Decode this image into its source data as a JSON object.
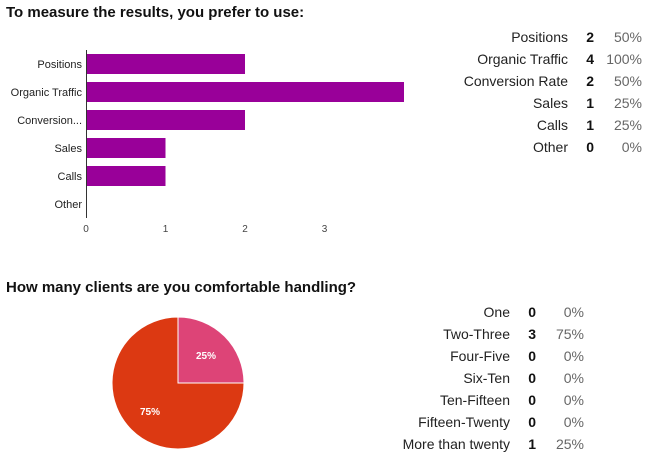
{
  "questions": [
    {
      "title": "To measure the results, you prefer to use:",
      "rows": [
        {
          "label": "Positions",
          "count": "2",
          "percent": "50%"
        },
        {
          "label": "Organic Traffic",
          "count": "4",
          "percent": "100%"
        },
        {
          "label": "Conversion Rate",
          "count": "2",
          "percent": "50%"
        },
        {
          "label": "Sales",
          "count": "1",
          "percent": "25%"
        },
        {
          "label": "Calls",
          "count": "1",
          "percent": "25%"
        },
        {
          "label": "Other",
          "count": "0",
          "percent": "0%"
        }
      ]
    },
    {
      "title": "How many clients are you comfortable handling?",
      "rows": [
        {
          "label": "One",
          "count": "0",
          "percent": "0%"
        },
        {
          "label": "Two-Three",
          "count": "3",
          "percent": "75%"
        },
        {
          "label": "Four-Five",
          "count": "0",
          "percent": "0%"
        },
        {
          "label": "Six-Ten",
          "count": "0",
          "percent": "0%"
        },
        {
          "label": "Ten-Fifteen",
          "count": "0",
          "percent": "0%"
        },
        {
          "label": "Fifteen-Twenty",
          "count": "0",
          "percent": "0%"
        },
        {
          "label": "More than twenty",
          "count": "1",
          "percent": "25%"
        }
      ]
    }
  ],
  "chart_data": [
    {
      "type": "bar",
      "orientation": "horizontal",
      "categories": [
        "Positions",
        "Organic Traffic",
        "Conversion...",
        "Sales",
        "Calls",
        "Other"
      ],
      "values": [
        2,
        4,
        2,
        1,
        1,
        0
      ],
      "xticks": [
        "0",
        "1",
        "2",
        "3"
      ],
      "xlim": [
        0,
        4
      ],
      "bar_color": "#990099",
      "grid": false,
      "legend": "none"
    },
    {
      "type": "pie",
      "labels": [
        "More than twenty",
        "Two-Three"
      ],
      "values": [
        1,
        3
      ],
      "data_labels": [
        "25%",
        "75%"
      ],
      "colors": [
        "#dd4477",
        "#dc3912"
      ],
      "legend": "none"
    }
  ]
}
